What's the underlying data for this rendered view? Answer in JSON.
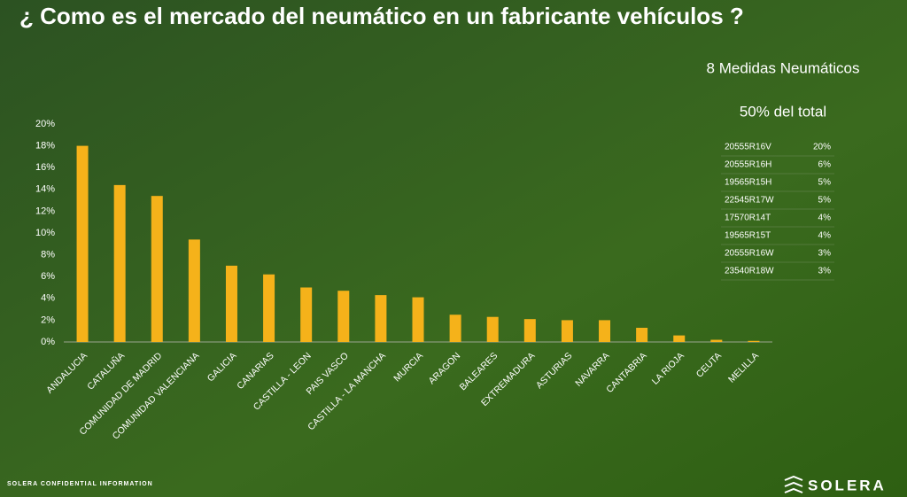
{
  "chart_data": {
    "type": "bar",
    "title": "¿ Como es el mercado del neumático en un fabricante vehículos ?",
    "categories": [
      "ANDALUCIA",
      "CATALUÑA",
      "COMUNIDAD DE MADRID",
      "COMUNIDAD VALENCIANA",
      "GALICIA",
      "CANARIAS",
      "CASTILLA - LEON",
      "PAIS VASCO",
      "CASTILLA - LA MANCHA",
      "MURCIA",
      "ARAGON",
      "BALEARES",
      "EXTREMADURA",
      "ASTURIAS",
      "NAVARRA",
      "CANTABRIA",
      "LA RIOJA",
      "CEUTA",
      "MELILLA"
    ],
    "values": [
      18,
      14.4,
      13.4,
      9.4,
      7.0,
      6.2,
      5.0,
      4.7,
      4.3,
      4.1,
      2.5,
      2.3,
      2.1,
      2.0,
      2.0,
      1.3,
      0.6,
      0.2,
      0.1
    ],
    "color": "#f5b21a",
    "ylim": [
      0,
      20
    ],
    "yticks": [
      {
        "value": 0,
        "label": "0%"
      },
      {
        "value": 2,
        "label": "2%"
      },
      {
        "value": 4,
        "label": "4%"
      },
      {
        "value": 6,
        "label": "6%"
      },
      {
        "value": 8,
        "label": "8%"
      },
      {
        "value": 10,
        "label": "10%"
      },
      {
        "value": 12,
        "label": "12%"
      },
      {
        "value": 14,
        "label": "14%"
      },
      {
        "value": 16,
        "label": "16%"
      },
      {
        "value": 18,
        "label": "18%"
      },
      {
        "value": 20,
        "label": "20%"
      }
    ],
    "grid": false
  },
  "panel": {
    "heading": "8 Medidas Neumáticos",
    "share": "50% del total",
    "rows": [
      [
        "20555R16V",
        "20%"
      ],
      [
        "20555R16H",
        "6%"
      ],
      [
        "19565R15H",
        "5%"
      ],
      [
        "22545R17W",
        "5%"
      ],
      [
        "17570R14T",
        "4%"
      ],
      [
        "19565R15T",
        "4%"
      ],
      [
        "20555R16W",
        "3%"
      ],
      [
        "23540R18W",
        "3%"
      ]
    ]
  },
  "footer": "SOLERA CONFIDENTIAL INFORMATION",
  "logo": "SOLERA"
}
